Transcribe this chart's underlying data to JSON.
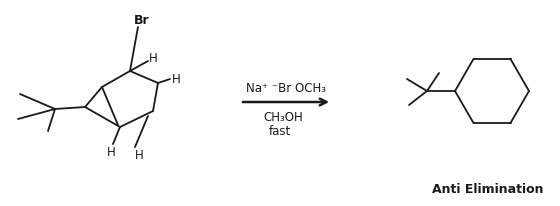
{
  "bg_color": "#ffffff",
  "text_color": "#1a1a1a",
  "figsize": [
    5.6,
    2.07
  ],
  "dpi": 100,
  "title": "Anti Elimination",
  "reagent1": "Na⁺ ⁻Br OCH₃",
  "reagent2": "CH₃OH",
  "reagent3": "fast"
}
